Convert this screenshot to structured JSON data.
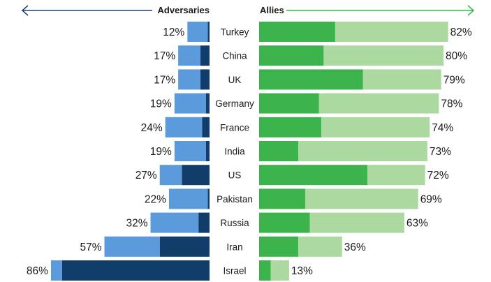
{
  "chart_data": {
    "type": "bar",
    "headers": {
      "left": "Adversaries",
      "right": "Allies"
    },
    "categories": [
      "Turkey",
      "China",
      "UK",
      "Germany",
      "France",
      "India",
      "US",
      "Pakistan",
      "Russia",
      "Iran",
      "Israel"
    ],
    "series": [
      {
        "group": "adversaries",
        "part": "somewhat",
        "values": [
          11,
          12,
          12,
          17,
          20,
          17,
          12,
          21,
          26,
          30,
          6
        ]
      },
      {
        "group": "adversaries",
        "part": "strongly",
        "values": [
          1,
          5,
          5,
          2,
          4,
          2,
          15,
          1,
          6,
          27,
          80
        ]
      },
      {
        "group": "allies",
        "part": "strongly",
        "values": [
          33,
          28,
          45,
          26,
          27,
          17,
          47,
          20,
          22,
          17,
          5
        ]
      },
      {
        "group": "allies",
        "part": "somewhat",
        "values": [
          49,
          52,
          34,
          52,
          47,
          56,
          25,
          49,
          41,
          19,
          8
        ]
      }
    ],
    "totals": {
      "adversaries": [
        "12%",
        "17%",
        "17%",
        "19%",
        "24%",
        "19%",
        "27%",
        "22%",
        "32%",
        "57%",
        "86%"
      ],
      "allies": [
        "82%",
        "80%",
        "79%",
        "78%",
        "74%",
        "73%",
        "72%",
        "69%",
        "63%",
        "36%",
        "13%"
      ]
    },
    "colors": {
      "adv_light": "#5b9bdc",
      "adv_dark": "#113d6b",
      "ally_dark": "#3cb44b",
      "ally_light": "#acd9a0",
      "adv_arrow": "#1f3d73",
      "ally_arrow": "#3cb44b"
    }
  }
}
